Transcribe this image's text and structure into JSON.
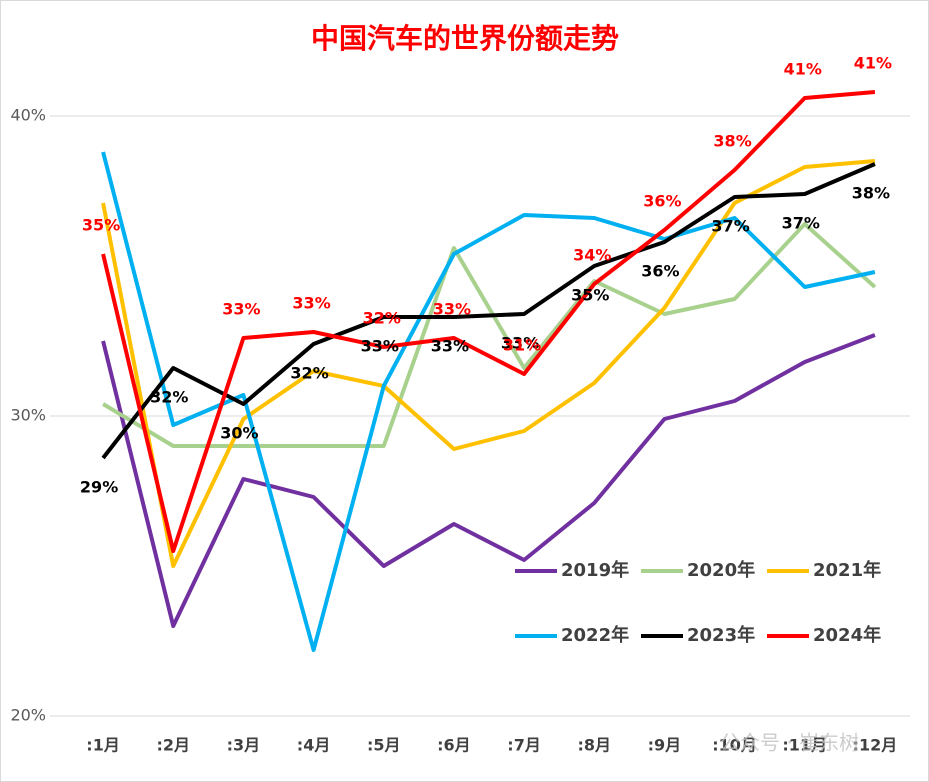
{
  "chart_data": {
    "type": "line",
    "title": "中国汽车的世界份额走势",
    "categories": [
      ":1月",
      ":2月",
      ":3月",
      ":4月",
      ":5月",
      ":6月",
      ":7月",
      ":8月",
      ":9月",
      ":10月",
      ":11月",
      ":12月"
    ],
    "series": [
      {
        "name": "2019年",
        "color": "#7030a0",
        "values": [
          32.5,
          23.0,
          27.9,
          27.3,
          25.0,
          26.4,
          25.2,
          27.1,
          29.9,
          30.5,
          31.8,
          32.7
        ]
      },
      {
        "name": "2020年",
        "color": "#a9d18e",
        "values": [
          30.4,
          29.0,
          29.0,
          29.0,
          29.0,
          35.6,
          31.6,
          34.5,
          33.4,
          33.9,
          36.4,
          34.3
        ]
      },
      {
        "name": "2021年",
        "color": "#ffc000",
        "values": [
          37.1,
          25.0,
          29.9,
          31.5,
          31.0,
          28.9,
          29.5,
          31.1,
          33.6,
          37.1,
          38.3,
          38.5
        ]
      },
      {
        "name": "2022年",
        "color": "#00b0f0",
        "values": [
          38.8,
          29.7,
          30.7,
          22.2,
          31.0,
          35.4,
          36.7,
          36.6,
          35.9,
          36.6,
          34.3,
          34.8
        ]
      },
      {
        "name": "2023年",
        "color": "#000000",
        "values": [
          28.6,
          31.6,
          30.4,
          32.4,
          33.3,
          33.3,
          33.4,
          35.0,
          35.8,
          37.3,
          37.4,
          38.4
        ],
        "value_labels": [
          "29%",
          "32%",
          "30%",
          "32%",
          "33%",
          "33%",
          "33%",
          "35%",
          "36%",
          "37%",
          "37%",
          "38%"
        ]
      },
      {
        "name": "2024年",
        "color": "#ff0000",
        "values": [
          35.4,
          25.5,
          32.6,
          32.8,
          32.3,
          32.6,
          31.4,
          34.4,
          36.2,
          38.2,
          40.6,
          40.8
        ],
        "value_labels": [
          "35%",
          null,
          "33%",
          "33%",
          "32%",
          "33%",
          "31%",
          "34%",
          "36%",
          "38%",
          "41%",
          "41%"
        ]
      }
    ],
    "ylim": [
      20,
      42
    ],
    "yticks": [
      {
        "value": 20,
        "label": "20%"
      },
      {
        "value": 30,
        "label": "30%"
      },
      {
        "value": 40,
        "label": "40%"
      }
    ],
    "grid": true,
    "legend": "lower right",
    "watermark": "公众号 · 崔东树"
  }
}
